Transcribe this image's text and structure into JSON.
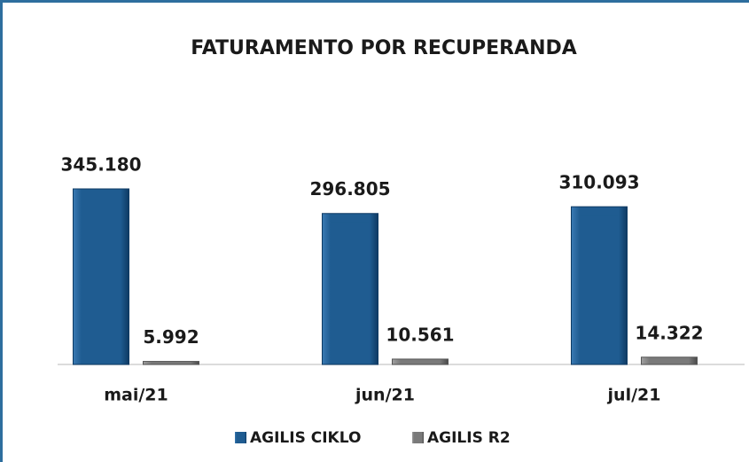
{
  "chart_data": {
    "type": "bar",
    "title": "FATURAMENTO POR RECUPERANDA",
    "categories": [
      "mai/21",
      "jun/21",
      "jul/21"
    ],
    "series": [
      {
        "name": "AGILIS CIKLO",
        "color": "#1f5c91",
        "values": [
          345180,
          296805,
          310093
        ],
        "value_labels": [
          "345.180",
          "296.805",
          "310.093"
        ]
      },
      {
        "name": "AGILIS R2",
        "color": "#7a7a7a",
        "values": [
          5992,
          10561,
          14322
        ],
        "value_labels": [
          "5.992",
          "10.561",
          "14.322"
        ]
      }
    ],
    "legend": "bottom"
  }
}
